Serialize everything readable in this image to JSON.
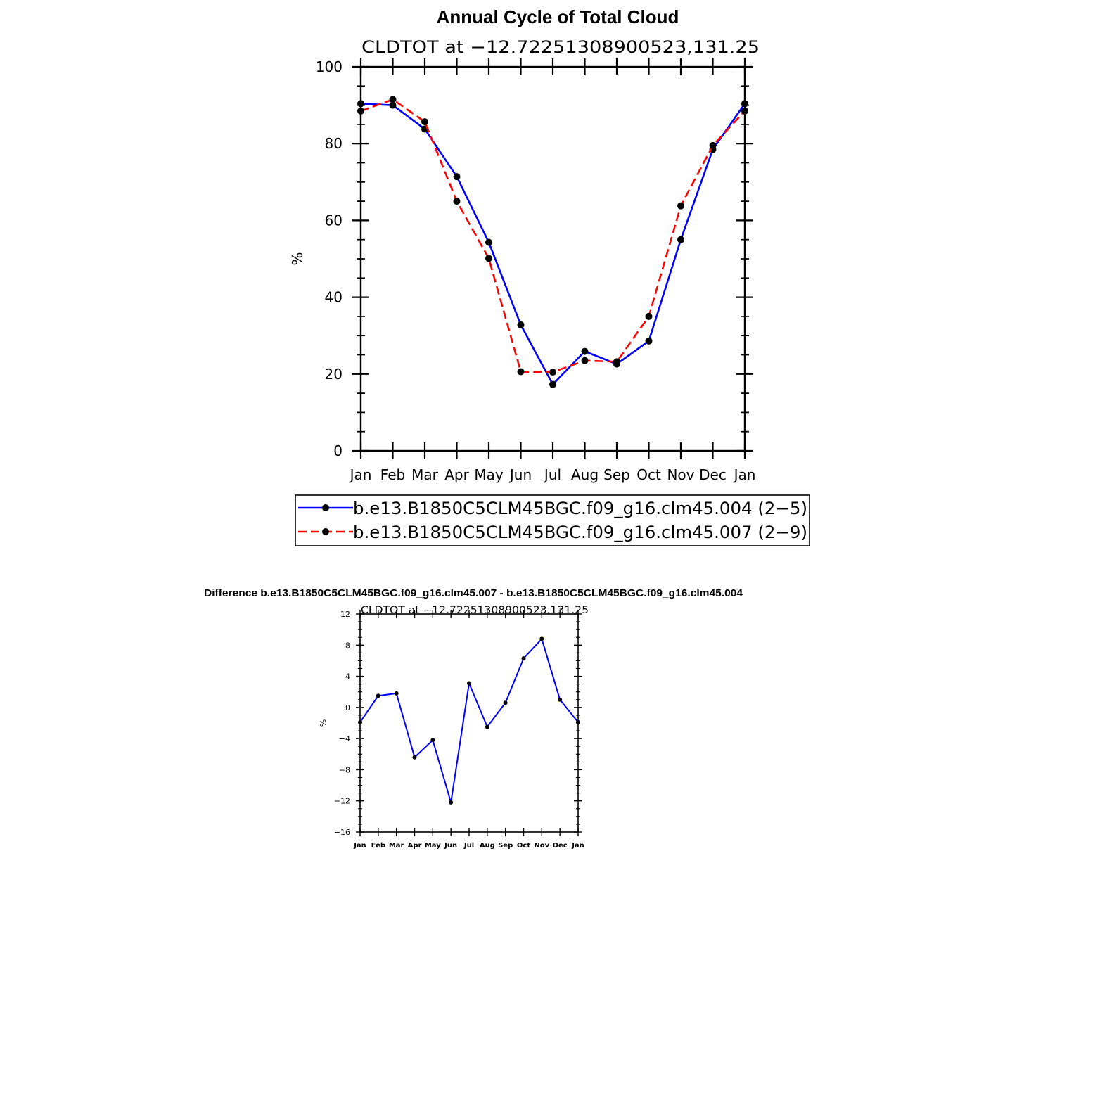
{
  "chart_data": [
    {
      "type": "line",
      "title": "Annual Cycle of Total Cloud",
      "subtitle": "CLDTOT at −12.72251308900523,131.25",
      "xlabel": "",
      "ylabel": "%",
      "categories": [
        "Jan",
        "Feb",
        "Mar",
        "Apr",
        "May",
        "Jun",
        "Jul",
        "Aug",
        "Sep",
        "Oct",
        "Nov",
        "Dec",
        "Jan"
      ],
      "ylim": [
        0,
        100
      ],
      "yticks": [
        "0",
        "20",
        "40",
        "60",
        "80",
        "100"
      ],
      "series": [
        {
          "name": "b.e13.B1850C5CLM45BGC.f09_g16.clm45.004 (2−5)",
          "color": "#0000ff",
          "dash": "solid",
          "values": [
            90.4,
            90.0,
            83.8,
            71.4,
            54.3,
            32.8,
            17.3,
            25.9,
            22.6,
            28.6,
            55.0,
            78.5,
            90.4
          ]
        },
        {
          "name": "b.e13.B1850C5CLM45BGC.f09_g16.clm45.007 (2−9)",
          "color": "#ff0000",
          "dash": "dashed",
          "values": [
            88.5,
            91.5,
            85.7,
            65.0,
            50.1,
            20.6,
            20.5,
            23.5,
            23.2,
            35.0,
            63.8,
            79.5,
            88.5
          ]
        }
      ],
      "legend": "bottom"
    },
    {
      "type": "line",
      "title": "Difference b.e13.B1850C5CLM45BGC.f09_g16.clm45.007 - b.e13.B1850C5CLM45BGC.f09_g16.clm45.004",
      "subtitle": "CLDTOT at −12.72251308900523,131.25",
      "xlabel": "",
      "ylabel": "%",
      "categories": [
        "Jan",
        "Feb",
        "Mar",
        "Apr",
        "May",
        "Jun",
        "Jul",
        "Aug",
        "Sep",
        "Oct",
        "Nov",
        "Dec",
        "Jan"
      ],
      "ylim": [
        -16,
        12
      ],
      "yticks": [
        "−16",
        "−12",
        "−8",
        "−4",
        "0",
        "4",
        "8",
        "12"
      ],
      "series": [
        {
          "color": "#0000ff",
          "dash": "solid",
          "values": [
            -1.9,
            1.5,
            1.8,
            -6.4,
            -4.2,
            -12.2,
            3.1,
            -2.5,
            0.6,
            6.3,
            8.8,
            1.0,
            -1.9
          ]
        }
      ]
    }
  ]
}
